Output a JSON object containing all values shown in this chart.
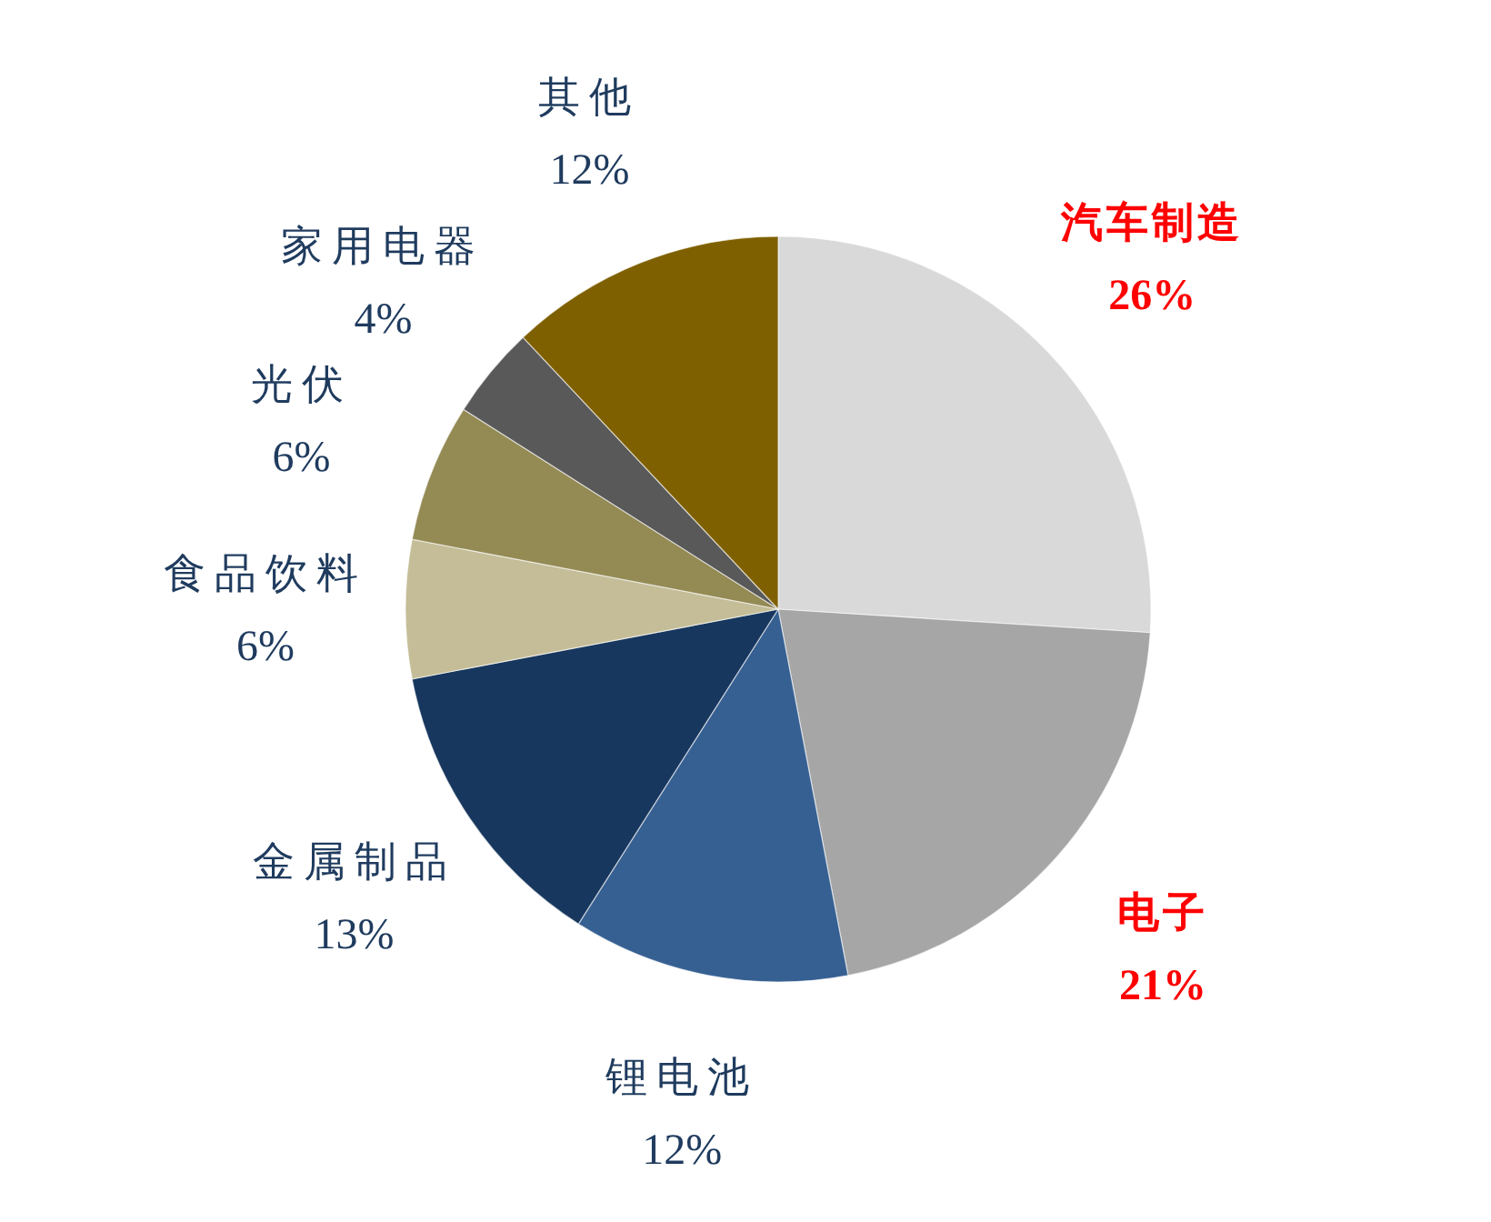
{
  "chart_data": {
    "type": "pie",
    "categories": [
      "汽车制造",
      "电子",
      "锂电池",
      "金属制品",
      "食品饮料",
      "光伏",
      "家用电器",
      "其他"
    ],
    "values": [
      26,
      21,
      12,
      13,
      6,
      6,
      4,
      12
    ],
    "value_labels": [
      "26%",
      "21%",
      "12%",
      "13%",
      "6%",
      "6%",
      "4%",
      "12%"
    ],
    "colors": [
      "#d9d9d9",
      "#a6a6a6",
      "#376092",
      "#17375e",
      "#c4bd97",
      "#948a54",
      "#595959",
      "#7f6000"
    ]
  }
}
